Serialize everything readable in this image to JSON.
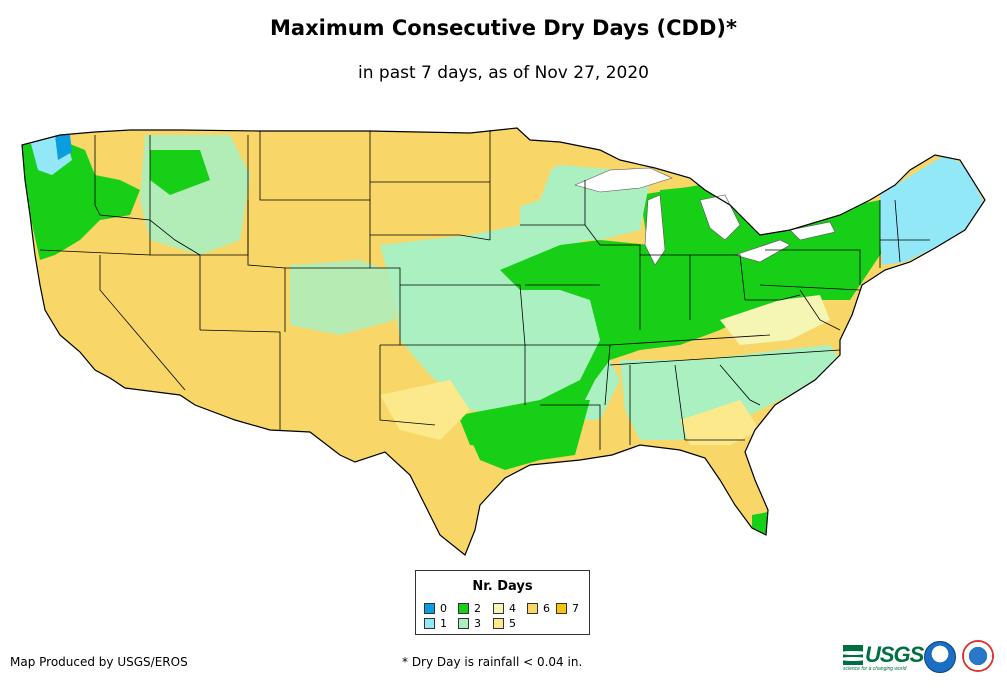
{
  "title": "Maximum Consecutive Dry Days (CDD)*",
  "subtitle": "in past 7 days, as of Nov 27, 2020",
  "legend": {
    "title": "Nr. Days",
    "items": [
      {
        "label": "0",
        "color": "#0b9de0"
      },
      {
        "label": "1",
        "color": "#92e8f7"
      },
      {
        "label": "2",
        "color": "#18cf18"
      },
      {
        "label": "3",
        "color": "#aaf0c1"
      },
      {
        "label": "4",
        "color": "#f5f5b4"
      },
      {
        "label": "5",
        "color": "#fbe98c"
      },
      {
        "label": "6",
        "color": "#f8d768"
      },
      {
        "label": "7",
        "color": "#f8c20a"
      }
    ]
  },
  "footer": {
    "producer": "Map Produced by USGS/EROS",
    "note": "* Dry Day is rainfall < 0.04 in."
  },
  "logos": {
    "usgs": "USGS",
    "usgs_tagline": "science for a changing world",
    "noaa": "noaa",
    "nws": "NWS"
  },
  "regions": [
    {
      "name": "pacific-northwest-coast",
      "days": 2
    },
    {
      "name": "puget-sound",
      "days": 0
    },
    {
      "name": "california-nevada",
      "days": 6
    },
    {
      "name": "great-basin-rockies",
      "days": 6
    },
    {
      "name": "northern-plains",
      "days": 6
    },
    {
      "name": "southwest",
      "days": 6
    },
    {
      "name": "central-plains",
      "days": 3
    },
    {
      "name": "texas",
      "days": 6
    },
    {
      "name": "east-texas-lower-mississippi",
      "days": 2
    },
    {
      "name": "midwest-ohio-valley",
      "days": 2
    },
    {
      "name": "great-lakes-northeast",
      "days": 2
    },
    {
      "name": "new-england",
      "days": 1
    },
    {
      "name": "southeast",
      "days": 3
    },
    {
      "name": "florida",
      "days": 6
    }
  ]
}
